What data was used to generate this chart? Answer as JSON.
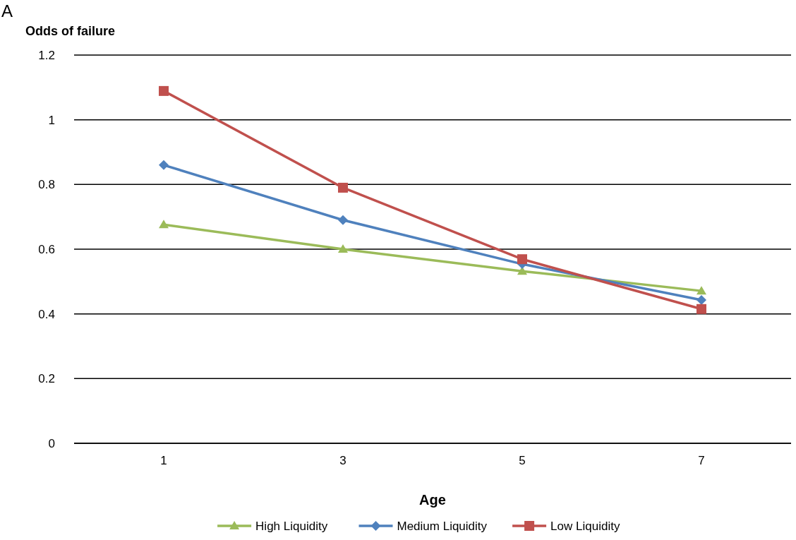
{
  "chart_data": {
    "type": "line",
    "annotations": [
      "A"
    ],
    "ylabel": "Odds of failure",
    "xlabel": "Age",
    "categories": [
      "1",
      "3",
      "5",
      "7"
    ],
    "ylim": [
      0,
      1.2
    ],
    "yticks": [
      0,
      0.2,
      0.4,
      0.6,
      0.8,
      1,
      1.2
    ],
    "grid": "y",
    "legend": "bottom",
    "line_style": "solid",
    "series": [
      {
        "name": "High Liquidity",
        "color": "#9bbb59",
        "marker": "triangle",
        "values": [
          0.676,
          0.6,
          0.532,
          0.471
        ]
      },
      {
        "name": "Medium Liquidity",
        "color": "#4f81bd",
        "marker": "diamond",
        "values": [
          0.86,
          0.69,
          0.554,
          0.443
        ]
      },
      {
        "name": "Low Liquidity",
        "color": "#c0504d",
        "marker": "square",
        "values": [
          1.089,
          0.79,
          0.569,
          0.415
        ]
      }
    ]
  }
}
